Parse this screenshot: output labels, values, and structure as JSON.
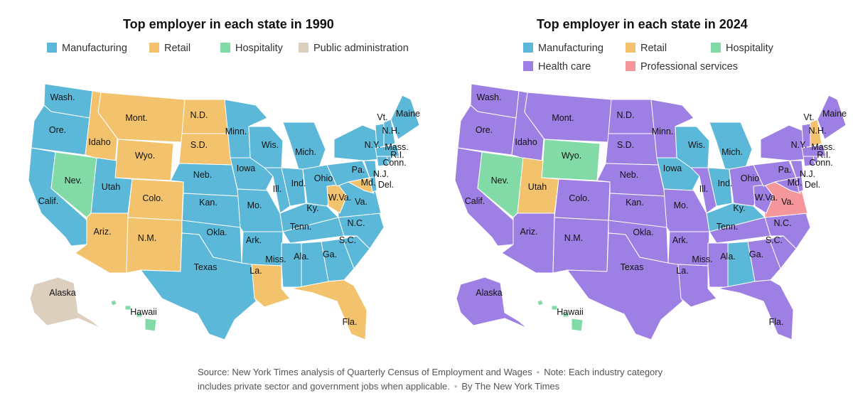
{
  "colors": {
    "manufacturing": "#5cb8d8",
    "retail": "#f2c26d",
    "hospitality": "#82dba6",
    "public_administration": "#dccfbe",
    "health_care": "#9e7fe3",
    "professional_services": "#f5969a"
  },
  "left": {
    "title": "Top employer in each state in 1990",
    "legend": [
      {
        "label": "Manufacturing",
        "key": "manufacturing"
      },
      {
        "label": "Retail",
        "key": "retail"
      },
      {
        "label": "Hospitality",
        "key": "hospitality"
      },
      {
        "label": "Public administration",
        "key": "public_administration"
      }
    ]
  },
  "right": {
    "title": "Top employer in each state in 2024",
    "legend": [
      {
        "label": "Manufacturing",
        "key": "manufacturing"
      },
      {
        "label": "Retail",
        "key": "retail"
      },
      {
        "label": "Hospitality",
        "key": "hospitality"
      },
      {
        "label": "Health care",
        "key": "health_care"
      },
      {
        "label": "Professional services",
        "key": "professional_services"
      }
    ]
  },
  "states": [
    {
      "id": "WA",
      "label": "Wash.",
      "y1990": "manufacturing",
      "y2024": "health_care"
    },
    {
      "id": "OR",
      "label": "Ore.",
      "y1990": "manufacturing",
      "y2024": "health_care"
    },
    {
      "id": "CA",
      "label": "Calif.",
      "y1990": "manufacturing",
      "y2024": "health_care"
    },
    {
      "id": "NV",
      "label": "Nev.",
      "y1990": "hospitality",
      "y2024": "hospitality"
    },
    {
      "id": "ID",
      "label": "Idaho",
      "y1990": "retail",
      "y2024": "health_care"
    },
    {
      "id": "MT",
      "label": "Mont.",
      "y1990": "retail",
      "y2024": "health_care"
    },
    {
      "id": "WY",
      "label": "Wyo.",
      "y1990": "retail",
      "y2024": "hospitality"
    },
    {
      "id": "UT",
      "label": "Utah",
      "y1990": "manufacturing",
      "y2024": "retail"
    },
    {
      "id": "AZ",
      "label": "Ariz.",
      "y1990": "retail",
      "y2024": "health_care"
    },
    {
      "id": "CO",
      "label": "Colo.",
      "y1990": "retail",
      "y2024": "health_care"
    },
    {
      "id": "NM",
      "label": "N.M.",
      "y1990": "retail",
      "y2024": "health_care"
    },
    {
      "id": "ND",
      "label": "N.D.",
      "y1990": "retail",
      "y2024": "health_care"
    },
    {
      "id": "SD",
      "label": "S.D.",
      "y1990": "retail",
      "y2024": "health_care"
    },
    {
      "id": "NE",
      "label": "Neb.",
      "y1990": "manufacturing",
      "y2024": "health_care"
    },
    {
      "id": "KS",
      "label": "Kan.",
      "y1990": "manufacturing",
      "y2024": "health_care"
    },
    {
      "id": "OK",
      "label": "Okla.",
      "y1990": "manufacturing",
      "y2024": "health_care"
    },
    {
      "id": "TX",
      "label": "Texas",
      "y1990": "manufacturing",
      "y2024": "health_care"
    },
    {
      "id": "MN",
      "label": "Minn.",
      "y1990": "manufacturing",
      "y2024": "health_care"
    },
    {
      "id": "IA",
      "label": "Iowa",
      "y1990": "manufacturing",
      "y2024": "manufacturing"
    },
    {
      "id": "MO",
      "label": "Mo.",
      "y1990": "manufacturing",
      "y2024": "health_care"
    },
    {
      "id": "AR",
      "label": "Ark.",
      "y1990": "manufacturing",
      "y2024": "health_care"
    },
    {
      "id": "LA",
      "label": "La.",
      "y1990": "retail",
      "y2024": "health_care"
    },
    {
      "id": "WI",
      "label": "Wis.",
      "y1990": "manufacturing",
      "y2024": "manufacturing"
    },
    {
      "id": "IL",
      "label": "Ill.",
      "y1990": "manufacturing",
      "y2024": "health_care"
    },
    {
      "id": "MI",
      "label": "Mich.",
      "y1990": "manufacturing",
      "y2024": "manufacturing"
    },
    {
      "id": "IN",
      "label": "Ind.",
      "y1990": "manufacturing",
      "y2024": "manufacturing"
    },
    {
      "id": "OH",
      "label": "Ohio",
      "y1990": "manufacturing",
      "y2024": "health_care"
    },
    {
      "id": "KY",
      "label": "Ky.",
      "y1990": "manufacturing",
      "y2024": "manufacturing"
    },
    {
      "id": "TN",
      "label": "Tenn.",
      "y1990": "manufacturing",
      "y2024": "health_care"
    },
    {
      "id": "MS",
      "label": "Miss.",
      "y1990": "manufacturing",
      "y2024": "health_care"
    },
    {
      "id": "AL",
      "label": "Ala.",
      "y1990": "manufacturing",
      "y2024": "manufacturing"
    },
    {
      "id": "GA",
      "label": "Ga.",
      "y1990": "manufacturing",
      "y2024": "health_care"
    },
    {
      "id": "FL",
      "label": "Fla.",
      "y1990": "retail",
      "y2024": "health_care"
    },
    {
      "id": "SC",
      "label": "S.C.",
      "y1990": "manufacturing",
      "y2024": "health_care"
    },
    {
      "id": "NC",
      "label": "N.C.",
      "y1990": "manufacturing",
      "y2024": "health_care"
    },
    {
      "id": "VA",
      "label": "Va.",
      "y1990": "manufacturing",
      "y2024": "professional_services"
    },
    {
      "id": "WV",
      "label": "W.Va.",
      "y1990": "retail",
      "y2024": "health_care"
    },
    {
      "id": "PA",
      "label": "Pa.",
      "y1990": "manufacturing",
      "y2024": "health_care"
    },
    {
      "id": "NY",
      "label": "N.Y.",
      "y1990": "manufacturing",
      "y2024": "health_care"
    },
    {
      "id": "MD",
      "label": "Md.",
      "y1990": "retail",
      "y2024": "health_care"
    },
    {
      "id": "DE",
      "label": "Del.",
      "y1990": "manufacturing",
      "y2024": "health_care"
    },
    {
      "id": "NJ",
      "label": "N.J.",
      "y1990": "manufacturing",
      "y2024": "health_care"
    },
    {
      "id": "CT",
      "label": "Conn.",
      "y1990": "manufacturing",
      "y2024": "health_care"
    },
    {
      "id": "RI",
      "label": "R.I.",
      "y1990": "manufacturing",
      "y2024": "health_care"
    },
    {
      "id": "MA",
      "label": "Mass.",
      "y1990": "manufacturing",
      "y2024": "health_care"
    },
    {
      "id": "VT",
      "label": "Vt.",
      "y1990": "manufacturing",
      "y2024": "health_care"
    },
    {
      "id": "NH",
      "label": "N.H.",
      "y1990": "manufacturing",
      "y2024": "retail"
    },
    {
      "id": "ME",
      "label": "Maine",
      "y1990": "manufacturing",
      "y2024": "health_care"
    },
    {
      "id": "AK",
      "label": "Alaska",
      "y1990": "public_administration",
      "y2024": "health_care"
    },
    {
      "id": "HI",
      "label": "Hawaii",
      "y1990": "hospitality",
      "y2024": "hospitality"
    }
  ],
  "source": {
    "text": "Source: New York Times analysis of Quarterly Census of Employment and Wages",
    "note": "Note: Each industry category includes private sector and government jobs when applicable.",
    "credit": "By The New York Times"
  }
}
